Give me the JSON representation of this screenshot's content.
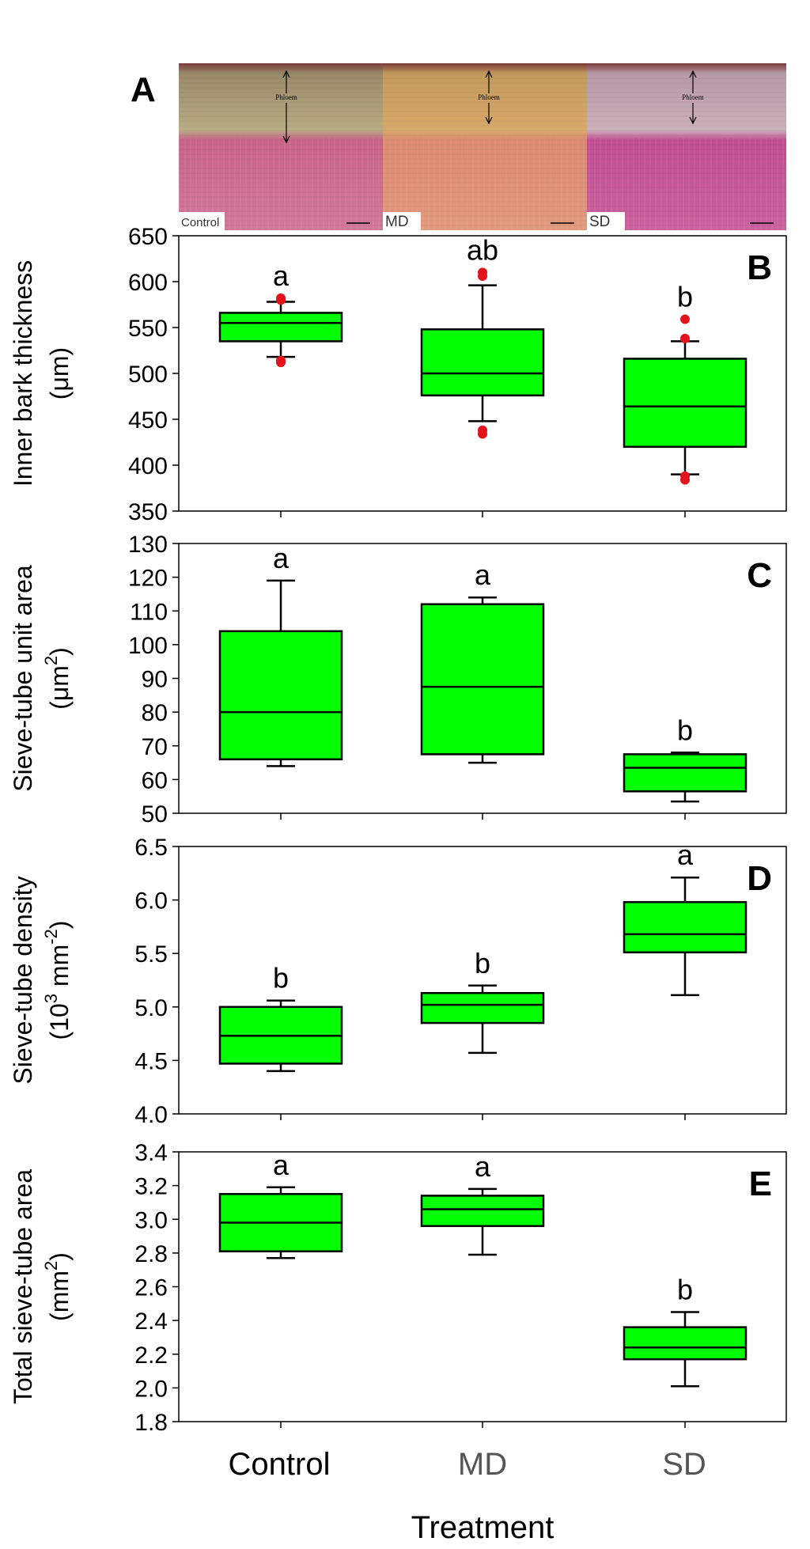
{
  "figure": {
    "xlabel": "Treatment",
    "categories": [
      "Control",
      "MD",
      "SD"
    ],
    "category_colors": [
      "#000000",
      "#555555",
      "#555555"
    ],
    "box_color": "#00ff00",
    "outlier_color": "#e3121b"
  },
  "panel_a": {
    "letter": "A",
    "photos": [
      {
        "label": "Control",
        "tissue_label": "Phloem",
        "palette": [
          "#9a8a6a",
          "#b8ad86",
          "#c86488",
          "#d27a9a"
        ]
      },
      {
        "label": "MD",
        "tissue_label": "Phloem",
        "palette": [
          "#c49a5c",
          "#d8aa6c",
          "#dc8a70",
          "#e29a7e"
        ]
      },
      {
        "label": "SD",
        "tissue_label": "Phloem",
        "palette": [
          "#b89aa6",
          "#cdb0ba",
          "#c04e90",
          "#cc62a0"
        ]
      }
    ]
  },
  "chart_data": [
    {
      "type": "box",
      "panel": "B",
      "ylabel_lines": [
        "Inner bark thickness",
        "(μm)"
      ],
      "ylim": [
        350,
        650
      ],
      "yticks": [
        "650",
        "600",
        "550",
        "500",
        "450",
        "400",
        "350"
      ],
      "categories": [
        "Control",
        "MD",
        "SD"
      ],
      "boxes": [
        {
          "whisker_low": 518,
          "q1": 535,
          "median": 555,
          "q3": 566,
          "whisker_high": 578,
          "outliers": [
            580,
            582,
            514,
            512
          ],
          "letter": "a"
        },
        {
          "whisker_low": 448,
          "q1": 476,
          "median": 500,
          "q3": 548,
          "whisker_high": 596,
          "outliers": [
            610,
            606,
            438,
            434
          ],
          "letter": "ab"
        },
        {
          "whisker_low": 390,
          "q1": 420,
          "median": 464,
          "q3": 516,
          "whisker_high": 535,
          "outliers": [
            559,
            538,
            388,
            384
          ],
          "letter": "b"
        }
      ]
    },
    {
      "type": "box",
      "panel": "C",
      "ylabel_lines": [
        "Sieve-tube unit area",
        "(μm",
        "2",
        ")"
      ],
      "ylim": [
        50,
        130
      ],
      "yticks": [
        "130",
        "120",
        "110",
        "100",
        "90",
        "80",
        "70",
        "60",
        "50"
      ],
      "categories": [
        "Control",
        "MD",
        "SD"
      ],
      "boxes": [
        {
          "whisker_low": 64,
          "q1": 66,
          "median": 80,
          "q3": 104,
          "whisker_high": 119,
          "outliers": [],
          "letter": "a"
        },
        {
          "whisker_low": 65,
          "q1": 67.5,
          "median": 87.5,
          "q3": 112,
          "whisker_high": 114,
          "outliers": [],
          "letter": "a"
        },
        {
          "whisker_low": 53.5,
          "q1": 56.5,
          "median": 63.5,
          "q3": 67.5,
          "whisker_high": 68,
          "outliers": [],
          "letter": "b"
        }
      ]
    },
    {
      "type": "box",
      "panel": "D",
      "ylabel_lines": [
        "Sieve-tube density",
        "(10",
        "3",
        " mm",
        "-2",
        ")"
      ],
      "ylim": [
        4.0,
        6.5
      ],
      "yticks": [
        "6.5",
        "6.0",
        "5.5",
        "5.0",
        "4.5",
        "4.0"
      ],
      "categories": [
        "Control",
        "MD",
        "SD"
      ],
      "boxes": [
        {
          "whisker_low": 4.4,
          "q1": 4.47,
          "median": 4.73,
          "q3": 5.0,
          "whisker_high": 5.06,
          "outliers": [],
          "letter": "b"
        },
        {
          "whisker_low": 4.57,
          "q1": 4.85,
          "median": 5.02,
          "q3": 5.13,
          "whisker_high": 5.2,
          "outliers": [],
          "letter": "b"
        },
        {
          "whisker_low": 5.11,
          "q1": 5.51,
          "median": 5.68,
          "q3": 5.98,
          "whisker_high": 6.21,
          "outliers": [],
          "letter": "a"
        }
      ]
    },
    {
      "type": "box",
      "panel": "E",
      "ylabel_lines": [
        "Total sieve-tube area",
        "(mm",
        "2",
        ")"
      ],
      "ylim": [
        1.8,
        3.4
      ],
      "yticks": [
        "3.4",
        "3.2",
        "3.0",
        "2.8",
        "2.6",
        "2.4",
        "2.2",
        "2.0",
        "1.8"
      ],
      "categories": [
        "Control",
        "MD",
        "SD"
      ],
      "boxes": [
        {
          "whisker_low": 2.77,
          "q1": 2.81,
          "median": 2.98,
          "q3": 3.15,
          "whisker_high": 3.19,
          "outliers": [],
          "letter": "a"
        },
        {
          "whisker_low": 2.79,
          "q1": 2.96,
          "median": 3.06,
          "q3": 3.14,
          "whisker_high": 3.18,
          "outliers": [],
          "letter": "a"
        },
        {
          "whisker_low": 2.01,
          "q1": 2.17,
          "median": 2.24,
          "q3": 2.36,
          "whisker_high": 2.45,
          "outliers": [],
          "letter": "b"
        }
      ]
    }
  ]
}
